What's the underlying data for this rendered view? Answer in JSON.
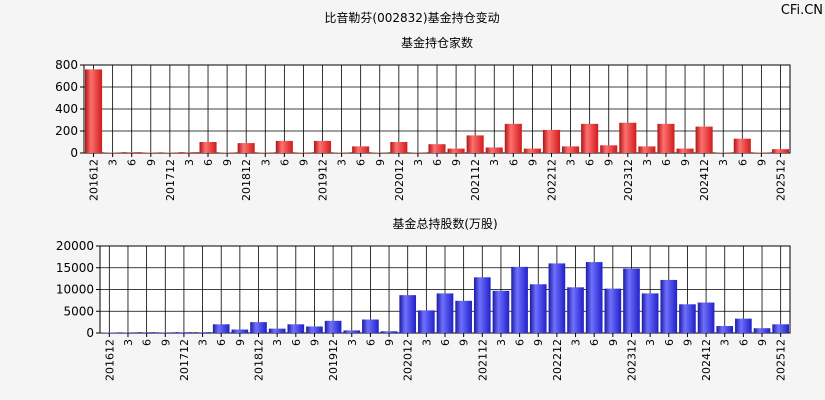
{
  "title": "比音勒芬(002832)基金持仓变动",
  "watermark": "CFi.CN",
  "colors": {
    "bar1": "#e02828",
    "bar2": "#2828d8",
    "grid": "#000000",
    "background": "#f5f5f5"
  },
  "chart_data": [
    {
      "type": "bar",
      "title": "基金持仓家数",
      "ylim": [
        0,
        800
      ],
      "yticks": [
        "0",
        "200",
        "400",
        "600",
        "800"
      ],
      "xtick_labels": [
        "201612",
        "3",
        "6",
        "9",
        "201712",
        "3",
        "6",
        "9",
        "201812",
        "3",
        "6",
        "9",
        "201912",
        "3",
        "6",
        "9",
        "202012",
        "3",
        "6",
        "9",
        "202112",
        "3",
        "6",
        "9",
        "202212",
        "3",
        "6",
        "9",
        "202312",
        "3",
        "6",
        "9",
        "202412",
        "3",
        "6",
        "9",
        "202512"
      ],
      "values": [
        760,
        5,
        8,
        5,
        5,
        8,
        100,
        5,
        90,
        5,
        110,
        5,
        110,
        5,
        60,
        5,
        100,
        5,
        80,
        40,
        160,
        50,
        265,
        40,
        210,
        60,
        265,
        70,
        275,
        60,
        265,
        40,
        240,
        5,
        130,
        5,
        35
      ]
    },
    {
      "type": "bar",
      "title": "基金总持股数(万股)",
      "ylim": [
        0,
        20000
      ],
      "yticks": [
        "0",
        "5000",
        "10000",
        "15000",
        "20000"
      ],
      "xtick_labels": [
        "201612",
        "3",
        "6",
        "9",
        "201712",
        "3",
        "6",
        "9",
        "201812",
        "3",
        "6",
        "9",
        "201912",
        "3",
        "6",
        "9",
        "202012",
        "3",
        "6",
        "9",
        "202112",
        "3",
        "6",
        "9",
        "202212",
        "3",
        "6",
        "9",
        "202312",
        "3",
        "6",
        "9",
        "202412",
        "3",
        "6",
        "9",
        "202512"
      ],
      "values": [
        100,
        150,
        200,
        150,
        200,
        200,
        2000,
        800,
        2500,
        1000,
        2000,
        1500,
        2800,
        600,
        3100,
        400,
        8700,
        5200,
        9100,
        7400,
        12800,
        9700,
        15200,
        11200,
        16000,
        10500,
        16300,
        10200,
        14800,
        9100,
        12200,
        6600,
        7000,
        1600,
        3300,
        1100,
        2000
      ]
    }
  ]
}
